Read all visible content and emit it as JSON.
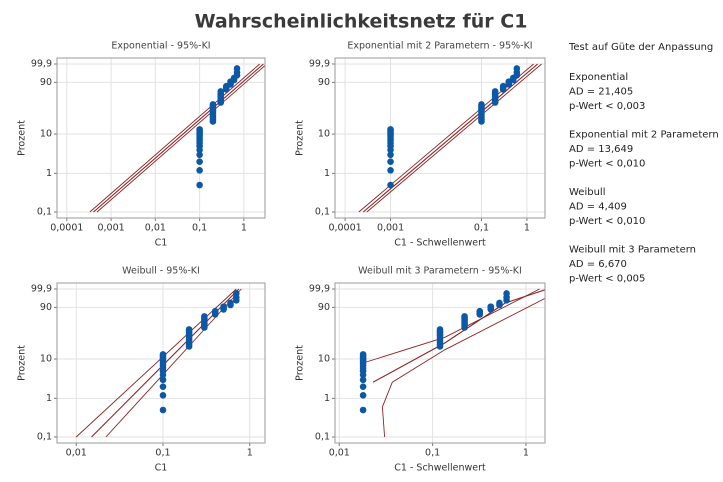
{
  "title": "Wahrscheinlichkeitsnetz für C1",
  "goodness_of_fit": {
    "title": "Test auf Güte der Anpassung",
    "results": [
      {
        "name": "Exponential",
        "ad": "AD = 21,405",
        "p": "p-Wert < 0,003"
      },
      {
        "name": "Exponential mit 2 Parametern",
        "ad": "AD = 13,649",
        "p": "p-Wert < 0,010"
      },
      {
        "name": "Weibull",
        "ad": "AD = 4,409",
        "p": "p-Wert < 0,010"
      },
      {
        "name": "Weibull mit 3 Parametern",
        "ad": "AD = 6,670",
        "p": "p-Wert < 0,005"
      }
    ]
  },
  "chart_data": [
    {
      "type": "scatter",
      "title": "Exponential - 95%-KI",
      "xlabel": "C1",
      "ylabel": "Prozent",
      "xscale": "log",
      "yscale": "weibull",
      "grid": true,
      "color": "#0b58a6",
      "line_color": "#8b2323",
      "xlim": [
        6e-05,
        3
      ],
      "ylim": [
        0.1,
        99.9
      ],
      "xticks": [
        {
          "value": 0.0001,
          "label": "0,0001"
        },
        {
          "value": 0.001,
          "label": "0,001"
        },
        {
          "value": 0.01,
          "label": "0,01"
        },
        {
          "value": 0.1,
          "label": "0,1"
        },
        1
      ],
      "yticks": [
        {
          "value": 0.1,
          "label": "0,1"
        },
        1,
        10,
        90,
        {
          "value": 99.9,
          "label": "99,9"
        }
      ],
      "points": {
        "x": [
          0.1,
          0.1,
          0.1,
          0.1,
          0.1,
          0.1,
          0.1,
          0.1,
          0.1,
          0.1,
          0.1,
          0.1,
          0.1,
          0.1,
          0.2,
          0.2,
          0.2,
          0.2,
          0.2,
          0.2,
          0.2,
          0.2,
          0.2,
          0.2,
          0.3,
          0.3,
          0.3,
          0.3,
          0.3,
          0.3,
          0.3,
          0.4,
          0.4,
          0.4,
          0.5,
          0.5,
          0.5,
          0.6,
          0.6,
          0.7,
          0.7,
          0.7
        ],
        "y": [
          0.5,
          1.2,
          2,
          3,
          4,
          5,
          6,
          7,
          8,
          9,
          10,
          11,
          12,
          13,
          20,
          22,
          25,
          28,
          31,
          34,
          37,
          40,
          43,
          46,
          50,
          54,
          58,
          62,
          66,
          70,
          74,
          78,
          81,
          84,
          87,
          89,
          91,
          93,
          95,
          97,
          98.5,
          99.5
        ]
      },
      "fit": {
        "x": [
          0.0004,
          2.76
        ],
        "y": [
          0.1,
          99.9
        ]
      },
      "ci_lower": {
        "x": [
          0.00033,
          2.28
        ],
        "y": [
          0.1,
          99.9
        ]
      },
      "ci_upper": {
        "x": [
          0.00048,
          3.3
        ],
        "y": [
          0.1,
          99.9
        ]
      }
    },
    {
      "type": "scatter",
      "title": "Exponential mit 2 Parametern - 95%-KI",
      "xlabel": "C1 - Schwellenwert",
      "ylabel": "Prozent",
      "xscale": "log",
      "yscale": "weibull",
      "grid": true,
      "color": "#0b58a6",
      "line_color": "#8b2323",
      "xlim": [
        6e-05,
        2.5
      ],
      "ylim": [
        0.1,
        99.9
      ],
      "xticks": [
        {
          "value": 0.0001,
          "label": "0,0001"
        },
        {
          "value": 0.001,
          "label": "0,001"
        },
        {
          "value": 0.1,
          "label": "0,1"
        },
        1
      ],
      "yticks": [
        {
          "value": 0.1,
          "label": "0,1"
        },
        1,
        10,
        90,
        {
          "value": 99.9,
          "label": "99,9"
        }
      ],
      "points": {
        "x": [
          0.001,
          0.001,
          0.001,
          0.001,
          0.001,
          0.001,
          0.001,
          0.001,
          0.001,
          0.001,
          0.001,
          0.001,
          0.001,
          0.001,
          0.1,
          0.1,
          0.1,
          0.1,
          0.1,
          0.1,
          0.1,
          0.1,
          0.1,
          0.1,
          0.2,
          0.2,
          0.2,
          0.2,
          0.2,
          0.2,
          0.2,
          0.3,
          0.3,
          0.3,
          0.4,
          0.4,
          0.4,
          0.5,
          0.5,
          0.6,
          0.6,
          0.6
        ],
        "y": [
          0.5,
          1.2,
          2,
          3,
          4,
          5,
          6,
          7,
          8,
          9,
          10,
          11,
          12,
          13,
          20,
          22,
          25,
          28,
          31,
          34,
          37,
          40,
          43,
          46,
          50,
          54,
          58,
          62,
          66,
          70,
          74,
          78,
          81,
          84,
          87,
          89,
          91,
          93,
          95,
          97,
          98.5,
          99.5
        ]
      },
      "fit": {
        "x": [
          0.00025,
          1.73
        ],
        "y": [
          0.1,
          99.9
        ]
      },
      "ci_lower": {
        "x": [
          0.0002,
          1.4
        ],
        "y": [
          0.1,
          99.9
        ]
      },
      "ci_upper": {
        "x": [
          0.0003,
          2.1
        ],
        "y": [
          0.1,
          99.9
        ]
      }
    },
    {
      "type": "scatter",
      "title": "Weibull - 95%-KI",
      "xlabel": "C1",
      "ylabel": "Prozent",
      "xscale": "log",
      "yscale": "weibull",
      "grid": true,
      "color": "#0b58a6",
      "line_color": "#8b2323",
      "xlim": [
        0.006,
        1.5
      ],
      "ylim": [
        0.1,
        99.9
      ],
      "xticks": [
        {
          "value": 0.01,
          "label": "0,01"
        },
        {
          "value": 0.1,
          "label": "0,1"
        },
        1
      ],
      "yticks": [
        {
          "value": 0.1,
          "label": "0,1"
        },
        1,
        10,
        90,
        {
          "value": 99.9,
          "label": "99,9"
        }
      ],
      "points": {
        "x": [
          0.1,
          0.1,
          0.1,
          0.1,
          0.1,
          0.1,
          0.1,
          0.1,
          0.1,
          0.1,
          0.1,
          0.1,
          0.1,
          0.1,
          0.2,
          0.2,
          0.2,
          0.2,
          0.2,
          0.2,
          0.2,
          0.2,
          0.2,
          0.2,
          0.3,
          0.3,
          0.3,
          0.3,
          0.3,
          0.3,
          0.3,
          0.4,
          0.4,
          0.4,
          0.5,
          0.5,
          0.5,
          0.6,
          0.6,
          0.7,
          0.7,
          0.7
        ],
        "y": [
          0.5,
          1.2,
          2,
          3,
          4,
          5,
          6,
          7,
          8,
          9,
          10,
          11,
          12,
          13,
          20,
          22,
          25,
          28,
          31,
          34,
          37,
          40,
          43,
          46,
          50,
          54,
          58,
          62,
          66,
          70,
          74,
          78,
          81,
          84,
          87,
          89,
          91,
          93,
          95,
          97,
          98.5,
          99.5
        ]
      },
      "fit": {
        "x": [
          0.015,
          0.75
        ],
        "y": [
          0.1,
          99.9
        ]
      },
      "ci_lower": {
        "x": [
          0.01,
          0.7
        ],
        "y": [
          0.1,
          99.9
        ]
      },
      "ci_upper": {
        "x": [
          0.022,
          0.8
        ],
        "y": [
          0.1,
          99.9
        ]
      }
    },
    {
      "type": "scatter",
      "title": "Weibull mit 3 Parametern - 95%-KI",
      "xlabel": "C1 - Schwellenwert",
      "ylabel": "Prozent",
      "xscale": "log",
      "yscale": "weibull",
      "grid": true,
      "color": "#0b58a6",
      "line_color": "#8b2323",
      "xlim": [
        0.009,
        1.6
      ],
      "ylim": [
        0.1,
        99.9
      ],
      "xticks": [
        {
          "value": 0.01,
          "label": "0,01"
        },
        {
          "value": 0.1,
          "label": "0,1"
        },
        1
      ],
      "yticks": [
        {
          "value": 0.1,
          "label": "0,1"
        },
        1,
        10,
        90,
        {
          "value": 99.9,
          "label": "99,9"
        }
      ],
      "points": {
        "x": [
          0.018,
          0.018,
          0.018,
          0.018,
          0.018,
          0.018,
          0.018,
          0.018,
          0.018,
          0.018,
          0.018,
          0.018,
          0.018,
          0.018,
          0.12,
          0.12,
          0.12,
          0.12,
          0.12,
          0.12,
          0.12,
          0.12,
          0.12,
          0.12,
          0.22,
          0.22,
          0.22,
          0.22,
          0.22,
          0.22,
          0.22,
          0.32,
          0.32,
          0.32,
          0.42,
          0.42,
          0.42,
          0.52,
          0.52,
          0.62,
          0.62,
          0.62
        ],
        "y": [
          0.5,
          1.2,
          2,
          3,
          4,
          5,
          6,
          7,
          8,
          9,
          10,
          11,
          12,
          13,
          20,
          22,
          25,
          28,
          31,
          34,
          37,
          40,
          43,
          46,
          50,
          54,
          58,
          62,
          66,
          70,
          74,
          78,
          81,
          84,
          87,
          89,
          91,
          93,
          95,
          97,
          98.5,
          99.5
        ]
      },
      "fit": {
        "x": [
          0.023,
          0.135,
          0.6,
          1.7
        ],
        "y": [
          2.6,
          24,
          95,
          99.9
        ]
      },
      "ci_lower": {
        "x": [
          0.0306,
          0.029,
          0.037,
          0.135,
          1.7
        ],
        "y": [
          0.1,
          0.6,
          2.6,
          16.7,
          98.6
        ]
      },
      "ci_upper": {
        "x": [
          0.018,
          0.135,
          1.4
        ],
        "y": [
          8,
          32,
          99.9
        ]
      }
    }
  ]
}
